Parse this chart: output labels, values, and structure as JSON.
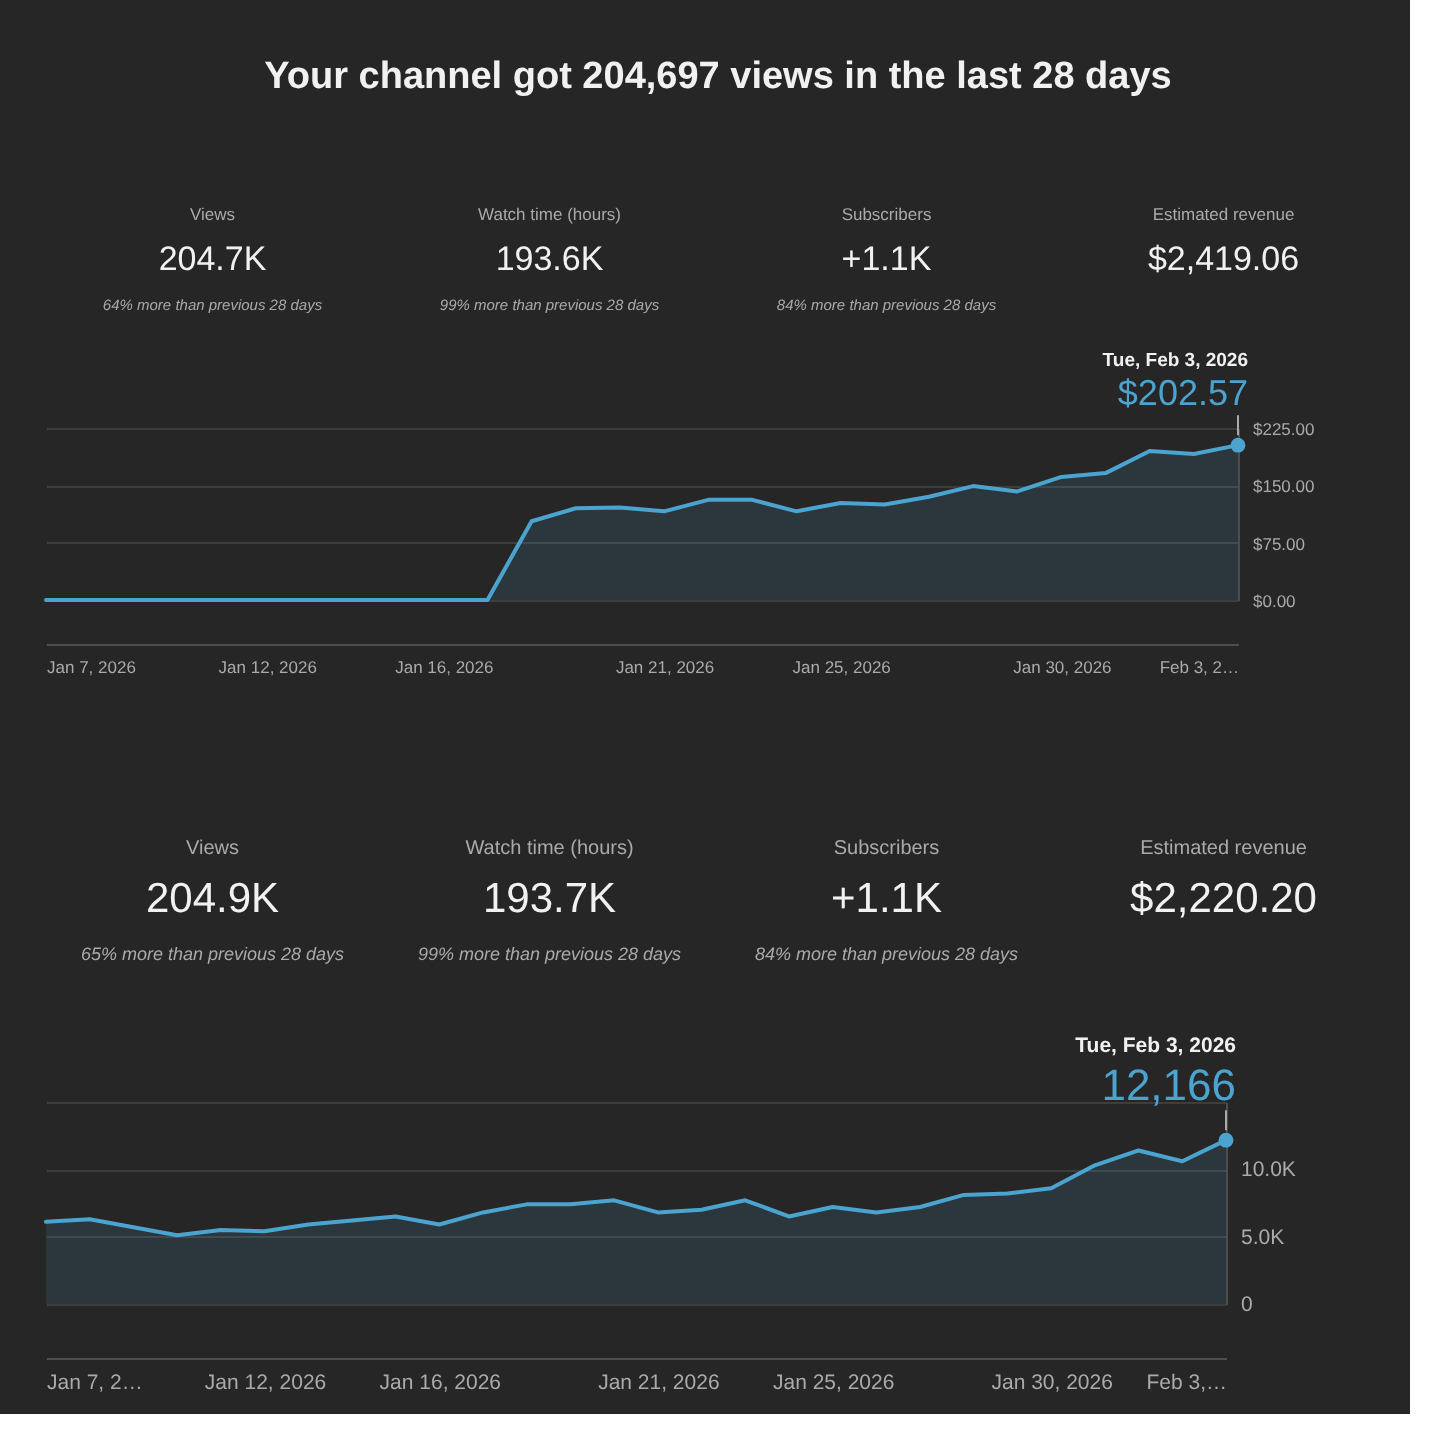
{
  "chart_data": [
    {
      "type": "area",
      "title": "Your channel got 204,697 views in the last 28 days",
      "x": [
        "2026-01-07",
        "2026-01-08",
        "2026-01-09",
        "2026-01-10",
        "2026-01-11",
        "2026-01-12",
        "2026-01-13",
        "2026-01-14",
        "2026-01-15",
        "2026-01-16",
        "2026-01-17",
        "2026-01-18",
        "2026-01-19",
        "2026-01-20",
        "2026-01-21",
        "2026-01-22",
        "2026-01-23",
        "2026-01-24",
        "2026-01-25",
        "2026-01-26",
        "2026-01-27",
        "2026-01-28",
        "2026-01-29",
        "2026-01-30",
        "2026-01-31",
        "2026-02-01",
        "2026-02-02",
        "2026-02-03"
      ],
      "series": [
        {
          "color": "#4ba3cf",
          "values": [
            0,
            0,
            0,
            0,
            0,
            0,
            0,
            0,
            0,
            0,
            0,
            103,
            120,
            121,
            116,
            131,
            131,
            116,
            127,
            125,
            135,
            149,
            142,
            161,
            166,
            195,
            191,
            202.57
          ]
        }
      ],
      "xlim": [
        "2026-01-07",
        "2026-02-03"
      ],
      "xticks": [
        {
          "value": "2026-01-07",
          "label": "Jan 7, 2026"
        },
        {
          "value": "2026-01-12",
          "label": "Jan 12, 2026"
        },
        {
          "value": "2026-01-16",
          "label": "Jan 16, 2026"
        },
        {
          "value": "2026-01-21",
          "label": "Jan 21, 2026"
        },
        {
          "value": "2026-01-25",
          "label": "Jan 25, 2026"
        },
        {
          "value": "2026-01-30",
          "label": "Jan 30, 2026"
        },
        {
          "value": "2026-02-03",
          "label": "Feb 3, 2…"
        }
      ],
      "ylim": [
        0,
        225
      ],
      "yticks": [
        {
          "value": 0,
          "label": "$0.00"
        },
        {
          "value": 75,
          "label": "$75.00"
        },
        {
          "value": 150,
          "label": "$150.00"
        },
        {
          "value": 225,
          "label": "$225.00"
        }
      ],
      "grid": "y",
      "annotations": [
        "Views",
        "204.7K",
        "64% more than previous 28 days",
        "Watch time (hours)",
        "193.6K",
        "99% more than previous 28 days",
        "Subscribers",
        "+1.1K",
        "84% more than previous 28 days",
        "Estimated revenue",
        "$2,419.06",
        "Tue, Feb 3, 2026",
        {
          "text": "$202.57",
          "x": "2026-02-03",
          "y": 202.57
        }
      ]
    },
    {
      "type": "area",
      "x": [
        "2026-01-07",
        "2026-01-08",
        "2026-01-09",
        "2026-01-10",
        "2026-01-11",
        "2026-01-12",
        "2026-01-13",
        "2026-01-14",
        "2026-01-15",
        "2026-01-16",
        "2026-01-17",
        "2026-01-18",
        "2026-01-19",
        "2026-01-20",
        "2026-01-21",
        "2026-01-22",
        "2026-01-23",
        "2026-01-24",
        "2026-01-25",
        "2026-01-26",
        "2026-01-27",
        "2026-01-28",
        "2026-01-29",
        "2026-01-30",
        "2026-01-31",
        "2026-02-01",
        "2026-02-02",
        "2026-02-03"
      ],
      "series": [
        {
          "color": "#4ba3cf",
          "values": [
            6100,
            6300,
            5700,
            5100,
            5500,
            5400,
            5900,
            6200,
            6500,
            5900,
            6800,
            7400,
            7400,
            7700,
            6800,
            7000,
            7700,
            6500,
            7200,
            6800,
            7200,
            8100,
            8200,
            8600,
            10300,
            11400,
            10600,
            12166
          ]
        }
      ],
      "xlim": [
        "2026-01-07",
        "2026-02-03"
      ],
      "xticks": [
        {
          "value": "2026-01-07",
          "label": "Jan 7, 2…"
        },
        {
          "value": "2026-01-12",
          "label": "Jan 12, 2026"
        },
        {
          "value": "2026-01-16",
          "label": "Jan 16, 2026"
        },
        {
          "value": "2026-01-21",
          "label": "Jan 21, 2026"
        },
        {
          "value": "2026-01-25",
          "label": "Jan 25, 2026"
        },
        {
          "value": "2026-01-30",
          "label": "Jan 30, 2026"
        },
        {
          "value": "2026-02-03",
          "label": "Feb 3,…"
        }
      ],
      "ylim": [
        0,
        15000
      ],
      "yticks": [
        0,
        {
          "value": 5000,
          "label": "5.0K"
        },
        {
          "value": 10000,
          "label": "10.0K"
        },
        {
          "value": 15000,
          "label": null
        }
      ],
      "grid": "y",
      "annotations": [
        "Views",
        "204.9K",
        "65% more than previous 28 days",
        "Watch time (hours)",
        "193.7K",
        "99% more than previous 28 days",
        "Subscribers",
        "+1.1K",
        "84% more than previous 28 days",
        "Estimated revenue",
        "$2,220.20",
        "Tue, Feb 3, 2026",
        {
          "text": "12,166",
          "x": "2026-02-03",
          "y": 12166
        }
      ]
    }
  ]
}
